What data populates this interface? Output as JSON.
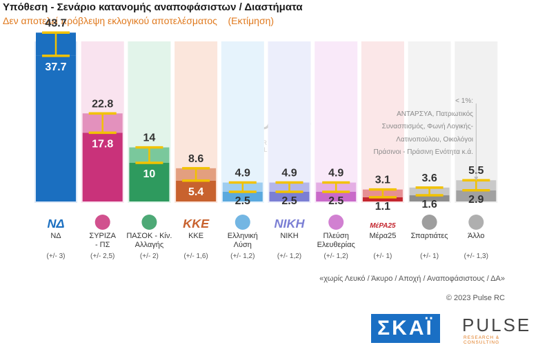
{
  "header": {
    "title": "Υπόθεση - Σενάριο κατανομής αναποφάσιστων / Διαστήματα",
    "subtitle": "Δεν αποτελεί πρόβλεψη εκλογικού αποτελέσματος    (Εκτίμηση)"
  },
  "chart_data": {
    "type": "bar",
    "title": "Υπόθεση - Σενάριο κατανομής αναποφάσιστων / Διαστήματα",
    "categories": [
      "ΝΔ",
      "ΣΥΡΙΖΑ - ΠΣ",
      "ΠΑΣΟΚ - Κίν. Αλλαγής",
      "ΚΚΕ",
      "Ελληνική Λύση",
      "ΝΙΚΗ",
      "Πλεύση Ελευθερίας",
      "Μέρα25",
      "Σπαρτιάτες",
      "Άλλο"
    ],
    "series": [
      {
        "name": "",
        "values": [
          43.7,
          22.8,
          14,
          8.6,
          4.9,
          4.9,
          4.9,
          3.1,
          3.6,
          5.5
        ]
      },
      {
        "name": "",
        "values": [
          37.7,
          17.8,
          10,
          5.4,
          2.5,
          2.5,
          2.5,
          1.1,
          1.6,
          2.9
        ]
      }
    ],
    "value_labels_upper": [
      "43.7",
      "22.8",
      "14",
      "8.6",
      "4.9",
      "4.9",
      "4.9",
      "3.1",
      "3.6",
      "5.5"
    ],
    "value_labels_lower": [
      "37.7",
      "17.8",
      "10",
      "5.4",
      "2.5",
      "2.5",
      "2.5",
      "1.1",
      "1.6",
      "2.9"
    ],
    "margins": [
      "(+/- 3)",
      "(+/- 2,5)",
      "(+/- 2)",
      "(+/- 1,6)",
      "(+/- 1,2)",
      "(+/- 1,2)",
      "(+/- 1,2)",
      "(+/- 1)",
      "(+/- 1)",
      "(+/- 1,3)"
    ],
    "labels": [
      [
        "ΝΔ"
      ],
      [
        "ΣΥΡΙΖΑ",
        "- ΠΣ"
      ],
      [
        "ΠΑΣΟΚ - Κίν.",
        "Αλλαγής"
      ],
      [
        "ΚΚΕ"
      ],
      [
        "Ελληνική",
        "Λύση"
      ],
      [
        "ΝΙΚΗ"
      ],
      [
        "Πλεύση",
        "Ελευθερίας"
      ],
      [
        "Μέρα25"
      ],
      [
        "Σπαρτιάτες"
      ],
      [
        "Άλλο"
      ]
    ],
    "logo_text": [
      "ΝΔ",
      "",
      "",
      "ΚΚΕ",
      "",
      "ΝΙΚΗ",
      "",
      "ΜέΡΑ25",
      "",
      ""
    ],
    "colors": {
      "strong": [
        "#1b6fc0",
        "#c9327a",
        "#2e9a5e",
        "#c8622e",
        "#5aa9de",
        "#7b7fd4",
        "#c96ac9",
        "#c4262e",
        "#8d8d8d",
        "#a1a1a1"
      ],
      "light": [
        "#1b6fc0",
        "#e391bd",
        "#7ac89c",
        "#e39f7f",
        "#9ecdf0",
        "#b4b6ea",
        "#e4aee4",
        "#e68f93",
        "#c6c6c6",
        "#c9c9c9"
      ],
      "pale": [
        "#dce8f7",
        "#f9e3ef",
        "#e2f4ea",
        "#fbe6dc",
        "#e6f3fc",
        "#eceefb",
        "#f9e9f9",
        "#fbe7e8",
        "#f3f3f3",
        "#f1f1f1"
      ],
      "interval": "#f2c200",
      "value_upper": "#333333",
      "value_lower": "#ffffff"
    },
    "ylim": [
      0,
      45
    ],
    "grid": false,
    "legend": "none"
  },
  "note": {
    "lines": [
      "< 1%:",
      "ΑΝΤΑΡΣΥΑ, Πατριωτικός",
      "Συνασπισμός, Φωνή Λογικής-",
      "Λατινοπούλου, Οικολόγοι",
      "Πράσινοι - Πράσινη Ενότητα   κ.ά."
    ]
  },
  "footer": {
    "note": "«χωρίς Λευκό / Άκυρο / Αποχή / Αναποφάσιστους / ΔΑ»",
    "copyright": "© 2023 Pulse RC"
  },
  "logos": {
    "skai": "ΣΚΑΪ",
    "pulse": "PULSE",
    "pulse_tag": "RESEARCH & CONSULTING"
  }
}
